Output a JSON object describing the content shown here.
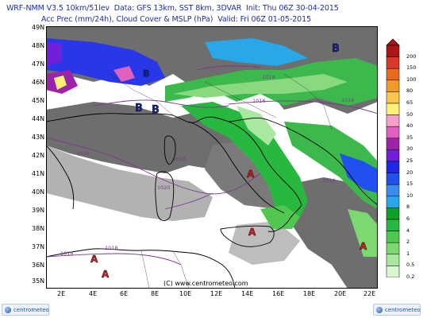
{
  "header": {
    "line1": "WRF-NMM V3.5 10km/51lev  Data: GFS 13km, SST 8km, 3DVAR  Init: Thu 06Z 30-04-2015",
    "line2": "Acc Prec (mm/24h), Cloud Cover & MSLP (hPa)  Valid: Fri 06Z 01-05-2015"
  },
  "latitude_labels": [
    "49N",
    "48N",
    "47N",
    "46N",
    "45N",
    "44N",
    "43N",
    "42N",
    "41N",
    "40N",
    "39N",
    "38N",
    "37N",
    "36N",
    "35N"
  ],
  "longitude_labels": [
    "2E",
    "4E",
    "6E",
    "8E",
    "10E",
    "12E",
    "14E",
    "16E",
    "18E",
    "20E",
    "22E"
  ],
  "colorbar": {
    "values": [
      "200",
      "150",
      "100",
      "80",
      "65",
      "50",
      "40",
      "35",
      "30",
      "25",
      "20",
      "15",
      "10",
      "8",
      "6",
      "4",
      "2",
      "1",
      "0.5",
      "0.2"
    ],
    "colors": [
      "#a81616",
      "#d83a2a",
      "#e86a20",
      "#f09a2a",
      "#f7c64a",
      "#fff07a",
      "#f6a0c8",
      "#e060c0",
      "#9b24a8",
      "#7020d8",
      "#2028e8",
      "#2050f0",
      "#3c8cf0",
      "#28a8e8",
      "#10a028",
      "#28b840",
      "#50c850",
      "#7cd870",
      "#a8e8a0",
      "#d8f6d0"
    ]
  },
  "isobars": [
    "1016",
    "1016",
    "1014",
    "1014",
    "1018",
    "1018",
    "1018",
    "1020",
    "1014"
  ],
  "pressure_centers": [
    {
      "type": "B",
      "label": "B"
    },
    {
      "type": "B",
      "label": "B"
    },
    {
      "type": "B",
      "label": "B"
    },
    {
      "type": "B",
      "label": "B"
    },
    {
      "type": "A",
      "label": "A"
    },
    {
      "type": "A",
      "label": "A"
    },
    {
      "type": "A",
      "label": "A"
    },
    {
      "type": "A",
      "label": "A"
    },
    {
      "type": "A",
      "label": "A"
    }
  ],
  "watermark": "(C) www.centrometeo.com",
  "logos": {
    "left": "centrometeo",
    "right": "centrometeo"
  },
  "colors": {
    "sea": "#ffffff",
    "cloud_dark": "#6e6e6e",
    "cloud_light": "#b2b2b2",
    "low_center": "#1a2a8a",
    "high_center": "#d02020",
    "isobar": "#7a3a8a"
  }
}
